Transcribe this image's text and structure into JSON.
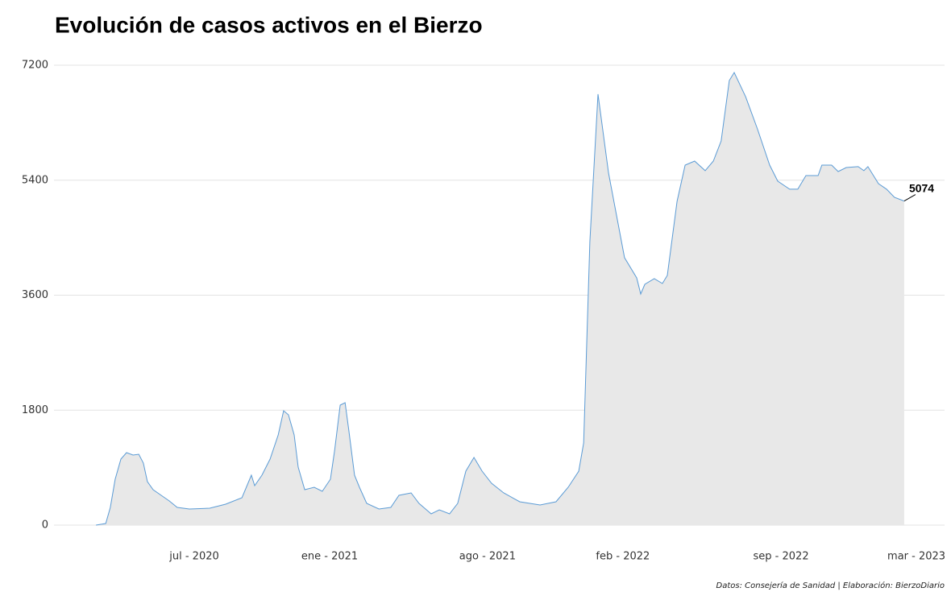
{
  "chart_data": {
    "type": "area",
    "title": "Evolución de casos activos en el Bierzo",
    "source": "Datos: Consejería de Sanidad | Elaboración: BierzoDiario",
    "color": "#5b9bd5",
    "fill_color": "#e8e8e8",
    "grid": true,
    "xlim": [
      2019.982,
      2023.271
    ],
    "xticks": [
      {
        "value": 2020.5,
        "label": "jul - 2020"
      },
      {
        "value": 2021.0,
        "label": "ene - 2021"
      },
      {
        "value": 2021.583,
        "label": "ago - 2021"
      },
      {
        "value": 2022.083,
        "label": "feb - 2022"
      },
      {
        "value": 2022.667,
        "label": "sep - 2022"
      },
      {
        "value": 2023.167,
        "label": "mar - 2023"
      }
    ],
    "ylim": [
      0,
      7200
    ],
    "yticks": [
      0,
      1800,
      3600,
      5400,
      7200
    ],
    "x": [
      2020.137,
      2020.173,
      2020.19,
      2020.208,
      2020.229,
      2020.25,
      2020.274,
      2020.295,
      2020.312,
      2020.327,
      2020.348,
      2020.378,
      2020.408,
      2020.437,
      2020.482,
      2020.557,
      2020.616,
      2020.676,
      2020.711,
      2020.723,
      2020.75,
      2020.78,
      2020.81,
      2020.83,
      2020.848,
      2020.869,
      2020.884,
      2020.908,
      2020.943,
      2020.973,
      2021.003,
      2021.018,
      2021.039,
      2021.057,
      2021.071,
      2021.092,
      2021.11,
      2021.137,
      2021.182,
      2021.226,
      2021.256,
      2021.301,
      2021.33,
      2021.375,
      2021.405,
      2021.443,
      2021.473,
      2021.503,
      2021.533,
      2021.563,
      2021.598,
      2021.643,
      2021.702,
      2021.777,
      2021.836,
      2021.881,
      2021.92,
      2021.938,
      2021.961,
      2021.991,
      2022.03,
      2022.089,
      2022.134,
      2022.149,
      2022.164,
      2022.199,
      2022.229,
      2022.247,
      2022.283,
      2022.313,
      2022.348,
      2022.387,
      2022.417,
      2022.446,
      2022.476,
      2022.494,
      2022.536,
      2022.58,
      2022.625,
      2022.655,
      2022.699,
      2022.729,
      2022.759,
      2022.804,
      2022.818,
      2022.854,
      2022.878,
      2022.908,
      2022.952,
      2022.973,
      2022.988,
      2023.027,
      2023.057,
      2023.086,
      2023.122
    ],
    "values": [
      0,
      25,
      277,
      719,
      1034,
      1135,
      1097,
      1110,
      971,
      681,
      555,
      467,
      378,
      277,
      252,
      265,
      328,
      429,
      782,
      618,
      782,
      1034,
      1412,
      1791,
      1728,
      1412,
      908,
      555,
      593,
      530,
      719,
      1160,
      1879,
      1917,
      1475,
      782,
      593,
      340,
      252,
      277,
      467,
      504,
      340,
      177,
      240,
      177,
      340,
      845,
      1059,
      845,
      656,
      504,
      366,
      315,
      366,
      593,
      845,
      1286,
      4439,
      6747,
      5511,
      4187,
      3871,
      3619,
      3770,
      3859,
      3783,
      3909,
      5069,
      5637,
      5700,
      5549,
      5700,
      6015,
      6961,
      7087,
      6709,
      6204,
      5637,
      5385,
      5259,
      5259,
      5473,
      5473,
      5637,
      5637,
      5536,
      5599,
      5612,
      5549,
      5612,
      5347,
      5259,
      5132,
      5074
    ]
  }
}
